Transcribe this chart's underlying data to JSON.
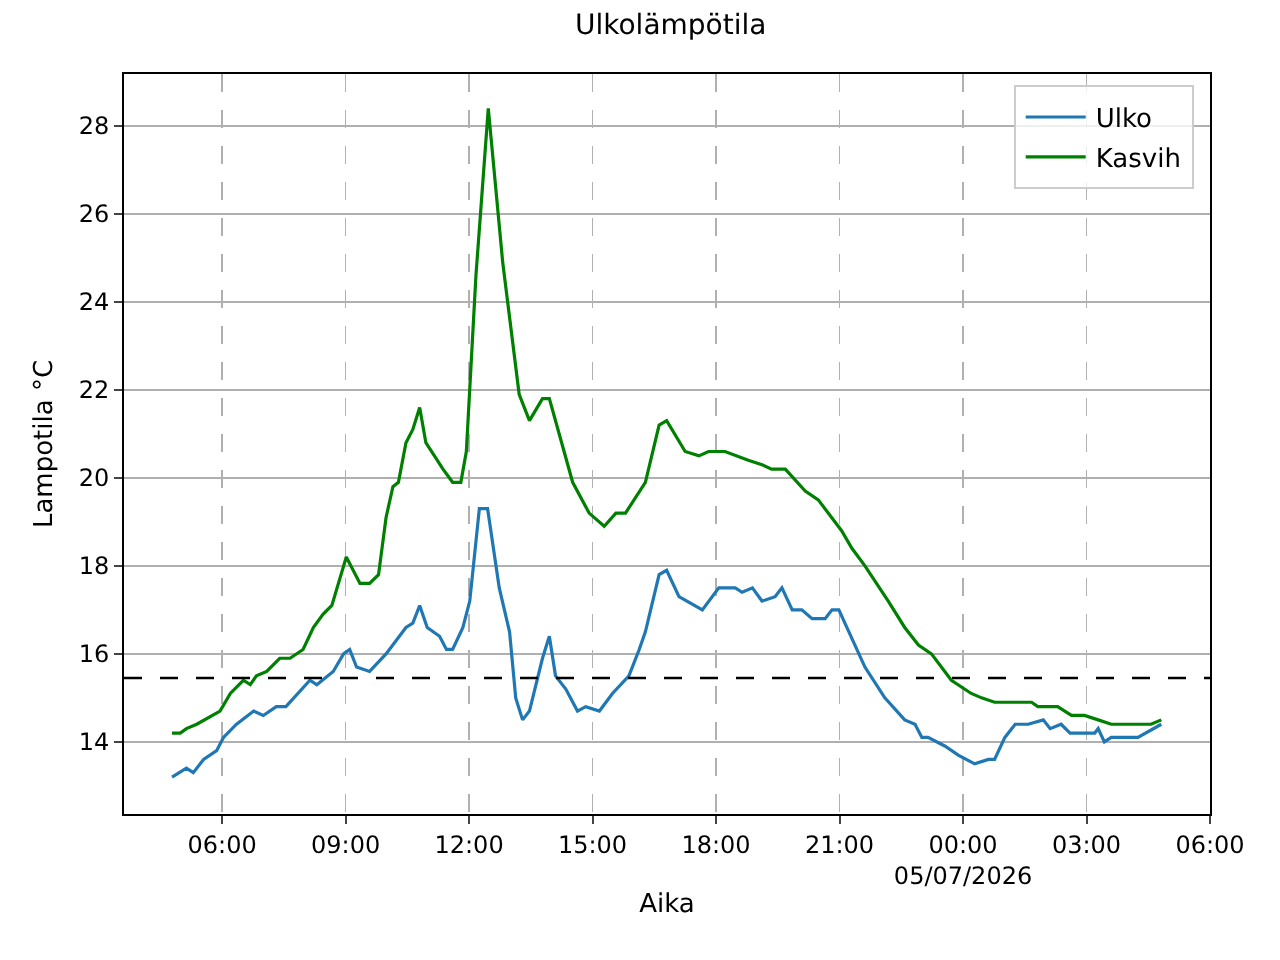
{
  "chart_data": {
    "type": "line",
    "title": "Ulkolämpötila",
    "xlabel": "Aika",
    "ylabel": "Lampotila °C",
    "xlim": [
      "2026-07-04T03:37",
      "2026-07-05T06:00"
    ],
    "xticks": [
      {
        "value": "2026-07-04T06:00",
        "label": "06:00"
      },
      {
        "value": "2026-07-04T09:00",
        "label": "09:00"
      },
      {
        "value": "2026-07-04T12:00",
        "label": "12:00"
      },
      {
        "value": "2026-07-04T15:00",
        "label": "15:00"
      },
      {
        "value": "2026-07-04T18:00",
        "label": "18:00"
      },
      {
        "value": "2026-07-04T21:00",
        "label": "21:00"
      },
      {
        "value": "2026-07-05T00:00",
        "label": "00:00\n05/07/2026"
      },
      {
        "value": "2026-07-05T03:00",
        "label": "03:00"
      },
      {
        "value": "2026-07-05T06:00",
        "label": "06:00"
      }
    ],
    "ylim": [
      12.36,
      29.18
    ],
    "yticks": [
      14,
      16,
      18,
      20,
      22,
      24,
      26,
      28
    ],
    "grid": true,
    "legend": "top right",
    "ref_lines": [
      {
        "axis": "y",
        "value": 15.45,
        "color": "#000000",
        "line_style": "dashed"
      }
    ],
    "series": [
      {
        "name": "Ulko",
        "color": "#1f77b4",
        "x": [
          "2026-07-04T04:47",
          "2026-07-04T05:08",
          "2026-07-04T05:18",
          "2026-07-04T05:33",
          "2026-07-04T05:52",
          "2026-07-04T06:02",
          "2026-07-04T06:21",
          "2026-07-04T06:46",
          "2026-07-04T07:00",
          "2026-07-04T07:19",
          "2026-07-04T07:33",
          "2026-07-04T08:08",
          "2026-07-04T08:18",
          "2026-07-04T08:42",
          "2026-07-04T08:57",
          "2026-07-04T09:06",
          "2026-07-04T09:16",
          "2026-07-04T09:35",
          "2026-07-04T09:59",
          "2026-07-04T10:28",
          "2026-07-04T10:38",
          "2026-07-04T10:48",
          "2026-07-04T10:59",
          "2026-07-04T11:17",
          "2026-07-04T11:27",
          "2026-07-04T11:36",
          "2026-07-04T11:51",
          "2026-07-04T12:01",
          "2026-07-04T12:15",
          "2026-07-04T12:27",
          "2026-07-04T12:44",
          "2026-07-04T12:59",
          "2026-07-04T13:08",
          "2026-07-04T13:18",
          "2026-07-04T13:28",
          "2026-07-04T13:47",
          "2026-07-04T13:57",
          "2026-07-04T14:06",
          "2026-07-04T14:21",
          "2026-07-04T14:38",
          "2026-07-04T14:50",
          "2026-07-04T15:10",
          "2026-07-04T15:29",
          "2026-07-04T15:53",
          "2026-07-04T16:08",
          "2026-07-04T16:17",
          "2026-07-04T16:37",
          "2026-07-04T16:48",
          "2026-07-04T17:06",
          "2026-07-04T17:40",
          "2026-07-04T18:04",
          "2026-07-04T18:28",
          "2026-07-04T18:38",
          "2026-07-04T18:53",
          "2026-07-04T19:07",
          "2026-07-04T19:26",
          "2026-07-04T19:36",
          "2026-07-04T19:51",
          "2026-07-04T20:05",
          "2026-07-04T20:20",
          "2026-07-04T20:39",
          "2026-07-04T20:49",
          "2026-07-04T20:59",
          "2026-07-04T21:37",
          "2026-07-04T22:06",
          "2026-07-04T22:35",
          "2026-07-04T22:50",
          "2026-07-04T23:00",
          "2026-07-04T23:09",
          "2026-07-04T23:34",
          "2026-07-04T23:53",
          "2026-07-05T00:17",
          "2026-07-05T00:37",
          "2026-07-05T00:46",
          "2026-07-05T01:01",
          "2026-07-05T01:16",
          "2026-07-05T01:35",
          "2026-07-05T01:57",
          "2026-07-05T02:07",
          "2026-07-05T02:23",
          "2026-07-05T02:36",
          "2026-07-05T03:12",
          "2026-07-05T03:17",
          "2026-07-05T03:26",
          "2026-07-05T03:36",
          "2026-07-05T04:15",
          "2026-07-05T04:49"
        ],
        "values": [
          13.2,
          13.4,
          13.3,
          13.6,
          13.8,
          14.1,
          14.4,
          14.7,
          14.6,
          14.8,
          14.8,
          15.4,
          15.3,
          15.6,
          16.0,
          16.1,
          15.7,
          15.6,
          16.0,
          16.6,
          16.7,
          17.1,
          16.6,
          16.4,
          16.1,
          16.1,
          16.6,
          17.2,
          19.3,
          19.3,
          17.5,
          16.5,
          15.0,
          14.5,
          14.7,
          15.9,
          16.4,
          15.5,
          15.2,
          14.7,
          14.8,
          14.7,
          15.1,
          15.5,
          16.1,
          16.5,
          17.8,
          17.9,
          17.3,
          17.0,
          17.5,
          17.5,
          17.4,
          17.5,
          17.2,
          17.3,
          17.5,
          17.0,
          17.0,
          16.8,
          16.8,
          17.0,
          17.0,
          15.7,
          15.0,
          14.5,
          14.4,
          14.1,
          14.1,
          13.9,
          13.7,
          13.5,
          13.6,
          13.6,
          14.1,
          14.4,
          14.4,
          14.5,
          14.3,
          14.4,
          14.2,
          14.2,
          14.3,
          14.0,
          14.1,
          14.1,
          14.4
        ]
      },
      {
        "name": "Kasvih",
        "color": "#008000",
        "x": [
          "2026-07-04T04:47",
          "2026-07-04T04:59",
          "2026-07-04T05:08",
          "2026-07-04T05:23",
          "2026-07-04T05:57",
          "2026-07-04T06:12",
          "2026-07-04T06:31",
          "2026-07-04T06:41",
          "2026-07-04T06:50",
          "2026-07-04T07:05",
          "2026-07-04T07:24",
          "2026-07-04T07:39",
          "2026-07-04T07:58",
          "2026-07-04T08:13",
          "2026-07-04T08:27",
          "2026-07-04T08:40",
          "2026-07-04T09:01",
          "2026-07-04T09:21",
          "2026-07-04T09:35",
          "2026-07-04T09:48",
          "2026-07-04T09:59",
          "2026-07-04T10:09",
          "2026-07-04T10:17",
          "2026-07-04T10:28",
          "2026-07-04T10:38",
          "2026-07-04T10:48",
          "2026-07-04T10:57",
          "2026-07-04T11:22",
          "2026-07-04T11:36",
          "2026-07-04T11:48",
          "2026-07-04T11:56",
          "2026-07-04T12:10",
          "2026-07-04T12:28",
          "2026-07-04T12:49",
          "2026-07-04T13:13",
          "2026-07-04T13:28",
          "2026-07-04T13:47",
          "2026-07-04T13:57",
          "2026-07-04T14:31",
          "2026-07-04T14:55",
          "2026-07-04T15:17",
          "2026-07-04T15:34",
          "2026-07-04T15:48",
          "2026-07-04T16:17",
          "2026-07-04T16:37",
          "2026-07-04T16:48",
          "2026-07-04T17:15",
          "2026-07-04T17:35",
          "2026-07-04T17:49",
          "2026-07-04T18:13",
          "2026-07-04T18:47",
          "2026-07-04T19:07",
          "2026-07-04T19:21",
          "2026-07-04T19:41",
          "2026-07-04T20:10",
          "2026-07-04T20:29",
          "2026-07-04T21:03",
          "2026-07-04T21:18",
          "2026-07-04T21:37",
          "2026-07-04T22:11",
          "2026-07-04T22:35",
          "2026-07-04T22:55",
          "2026-07-04T23:14",
          "2026-07-04T23:43",
          "2026-07-05T00:12",
          "2026-07-05T00:27",
          "2026-07-05T00:46",
          "2026-07-05T01:40",
          "2026-07-05T01:49",
          "2026-07-05T02:18",
          "2026-07-05T02:38",
          "2026-07-05T02:57",
          "2026-07-05T03:17",
          "2026-07-05T03:36",
          "2026-07-05T04:34",
          "2026-07-05T04:49"
        ],
        "values": [
          14.2,
          14.2,
          14.3,
          14.4,
          14.7,
          15.1,
          15.4,
          15.3,
          15.5,
          15.6,
          15.9,
          15.9,
          16.1,
          16.6,
          16.9,
          17.1,
          18.2,
          17.6,
          17.6,
          17.8,
          19.1,
          19.8,
          19.9,
          20.8,
          21.1,
          21.6,
          20.8,
          20.2,
          19.9,
          19.9,
          20.6,
          24.6,
          28.4,
          24.9,
          21.9,
          21.3,
          21.8,
          21.8,
          19.9,
          19.2,
          18.9,
          19.2,
          19.2,
          19.9,
          21.2,
          21.3,
          20.6,
          20.5,
          20.6,
          20.6,
          20.4,
          20.3,
          20.2,
          20.2,
          19.7,
          19.5,
          18.8,
          18.4,
          18.0,
          17.2,
          16.6,
          16.2,
          16.0,
          15.4,
          15.1,
          15.0,
          14.9,
          14.9,
          14.8,
          14.8,
          14.6,
          14.6,
          14.5,
          14.4,
          14.4,
          14.5
        ]
      }
    ]
  }
}
